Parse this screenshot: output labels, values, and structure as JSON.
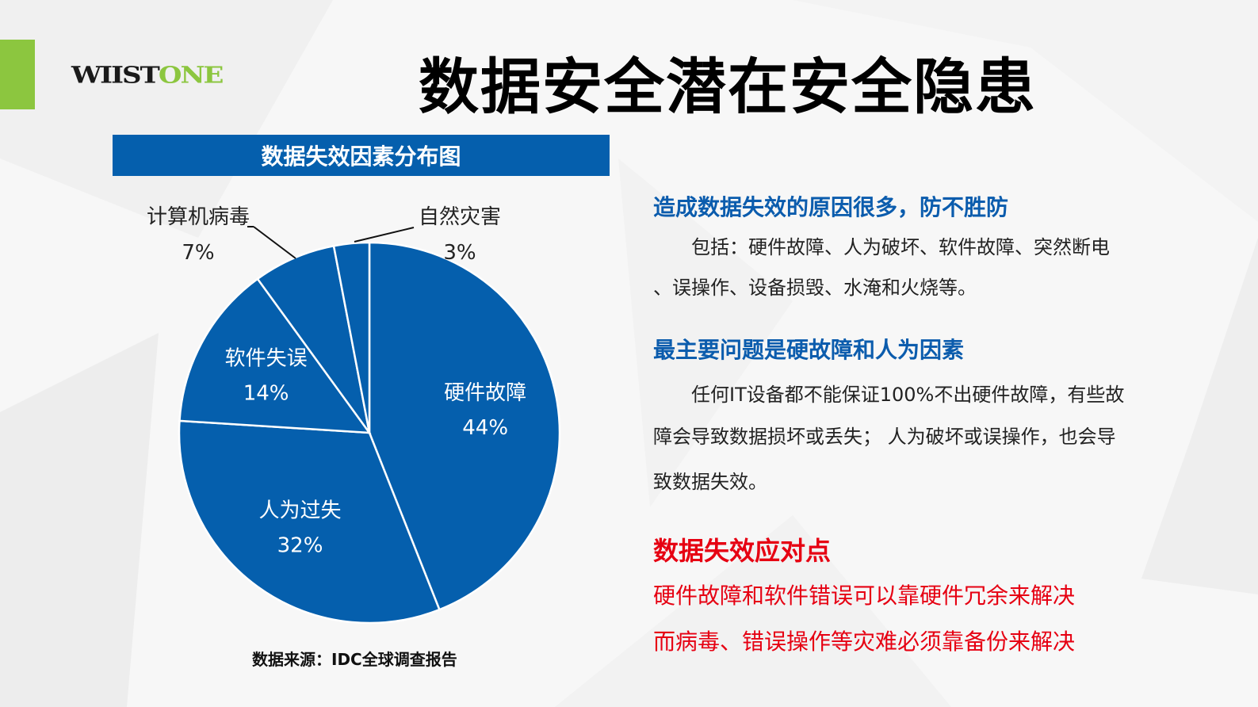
{
  "logo": {
    "dark": "WIIST",
    "green": "ONE"
  },
  "title": "数据安全潜在安全隐患",
  "colors": {
    "accent_green": "#8cc63f",
    "pie_blue": "#055fad",
    "heading_blue": "#0b5cad",
    "heading_red": "#e60012"
  },
  "chart_header": "数据失效因素分布图",
  "chart_data": {
    "type": "pie",
    "title": "数据失效因素分布图",
    "categories": [
      "硬件故障",
      "人为过失",
      "软件失误",
      "计算机病毒",
      "自然灾害"
    ],
    "values": [
      44,
      32,
      14,
      7,
      3
    ],
    "labels": [
      "44%",
      "32%",
      "14%",
      "7%",
      "3%"
    ],
    "start_angle": "top, clockwise",
    "source": "数据来源：IDC全球调查报告"
  },
  "source": "数据来源：IDC全球调查报告",
  "sections": [
    {
      "heading": "造成数据失效的原因很多，防不胜防",
      "lines": [
        "包括：硬件故障、人为破坏、软件故障、突然断电",
        "、误操作、设备损毁、水淹和火烧等。"
      ]
    },
    {
      "heading": "最主要问题是硬故障和人为因素",
      "lines": [
        "任何IT设备都不能保证100%不出硬件故障，有些故",
        "障会导致数据损坏或丢失； 人为破坏或误操作，也会导",
        "致数据失效。"
      ]
    },
    {
      "heading": "数据失效应对点",
      "lines": [
        "硬件故障和软件错误可以靠硬件冗余来解决",
        "而病毒、错误操作等灾难必须靠备份来解决"
      ]
    }
  ]
}
